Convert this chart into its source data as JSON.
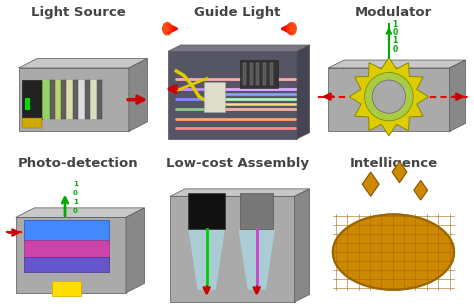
{
  "bg_color": "#ffffff",
  "titles": [
    "Light Source",
    "Guide Light",
    "Modulator",
    "Photo-detection",
    "Low-cost Assembly",
    "Intelligence"
  ],
  "title_color": "#444444",
  "title_fontsize": 9.5,
  "figure_bg": "#ffffff"
}
